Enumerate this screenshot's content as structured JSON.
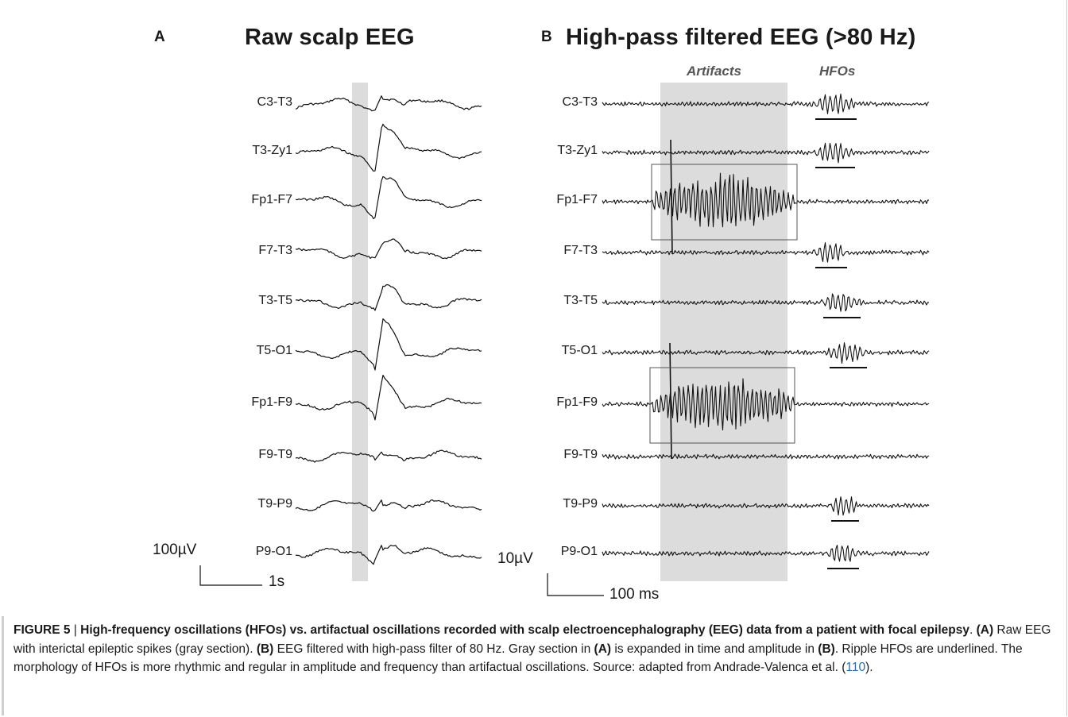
{
  "figure": {
    "panel_a": {
      "letter": "A",
      "title": "Raw scalp EEG",
      "channels": [
        "C3-T3",
        "T3-Zy1",
        "Fp1-F7",
        "F7-T3",
        "T3-T5",
        "T5-O1",
        "Fp1-F9",
        "F9-T9",
        "T9-P9",
        "P9-O1"
      ],
      "scale_amplitude": "100µV",
      "scale_time": "1s"
    },
    "panel_b": {
      "letter": "B",
      "title": "High-pass filtered EEG (>80 Hz)",
      "label_artifacts": "Artifacts",
      "label_hfos": "HFOs",
      "channels": [
        "C3-T3",
        "T3-Zy1",
        "Fp1-F7",
        "F7-T3",
        "T3-T5",
        "T5-O1",
        "Fp1-F9",
        "F9-T9",
        "T9-P9",
        "P9-O1"
      ],
      "scale_amplitude": "10µV",
      "scale_time": "100 ms"
    }
  },
  "caption": {
    "label": "FIGURE 5",
    "separator": " | ",
    "title": "High-frequency oscillations (HFOs) vs. artifactual oscillations recorded with scalp electroencephalography (EEG) data from a patient with focal epilepsy",
    "t1": ". ",
    "a_ref": "(A)",
    "t2": " Raw EEG with interictal epileptic spikes (gray section). ",
    "b_ref": "(B)",
    "t3": " EEG filtered with high-pass filter of 80 Hz. Gray section in ",
    "a_ref2": "(A)",
    "t4": " is expanded in time and amplitude in ",
    "b_ref2": "(B)",
    "t5": ". Ripple HFOs are underlined. The morphology of HFOs is more rhythmic and regular in amplitude and frequency than artifactual oscillations. Source: adapted from Andrade-Valenca et al. (",
    "citation": "110",
    "t6": ")."
  },
  "colors": {
    "trace": "#111111",
    "gray_band": "#dcdcdc",
    "box": "#555555",
    "citation": "#2b6cb0"
  }
}
